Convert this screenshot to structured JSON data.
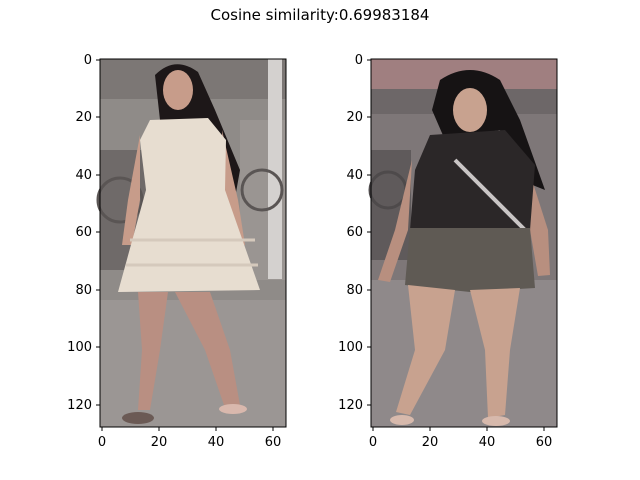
{
  "figure": {
    "title": "Cosine similarity:0.69983184"
  },
  "panels": [
    {
      "name": "left",
      "x_ticks": [
        "0",
        "20",
        "40",
        "60"
      ],
      "y_ticks": [
        "0",
        "20",
        "40",
        "60",
        "80",
        "100",
        "120"
      ],
      "image": {
        "description_color_bg": "#8f8b88",
        "dress_color": "#e7ddd0",
        "hair_color": "#1d1718",
        "skin_color": "#c79c8a"
      }
    },
    {
      "name": "right",
      "x_ticks": [
        "0",
        "20",
        "40",
        "60"
      ],
      "y_ticks": [
        "0",
        "20",
        "40",
        "60",
        "80",
        "100",
        "120"
      ],
      "image": {
        "description_color_bg": "#7e7778",
        "shirt_color": "#2b2728",
        "shorts_color": "#5f5a54",
        "hair_color": "#161314",
        "skin_color": "#c8a28f"
      }
    }
  ]
}
